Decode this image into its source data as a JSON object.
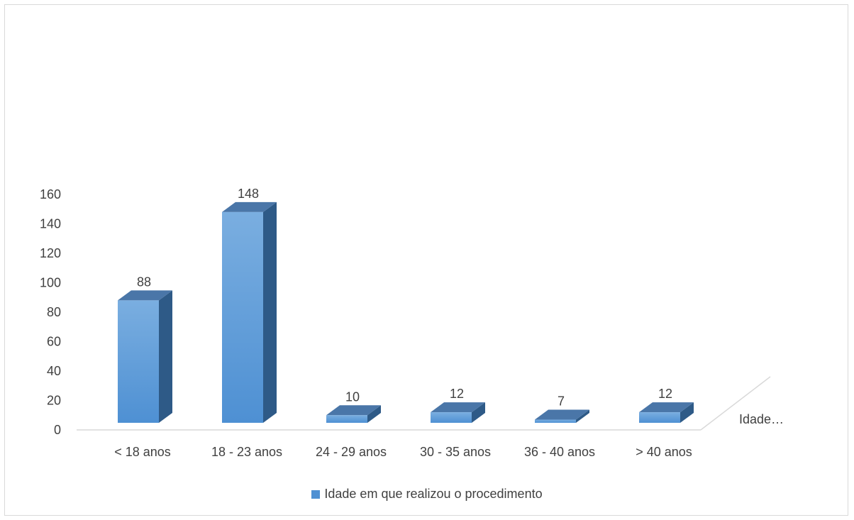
{
  "chart_data": {
    "type": "bar",
    "style": "3d-column",
    "categories": [
      "< 18 anos",
      "18 - 23 anos",
      "24 - 29 anos",
      "30 - 35 anos",
      "36 - 40 anos",
      "> 40 anos"
    ],
    "series": [
      {
        "name": "Idade em que realizou o procedimento",
        "values": [
          88,
          148,
          10,
          12,
          7,
          12
        ]
      }
    ],
    "yticks": [
      0,
      20,
      40,
      60,
      80,
      100,
      120,
      140,
      160
    ],
    "ylim": [
      0,
      160
    ],
    "depth_axis_label": "Idade…",
    "grid": false,
    "legend_position": "bottom",
    "colors": {
      "front": "#5b9bd5",
      "front_light": "#7aaee0",
      "top": "#4a76a8",
      "side": "#2e5a87",
      "axis": "#d9d9d9",
      "text": "#404040"
    }
  }
}
